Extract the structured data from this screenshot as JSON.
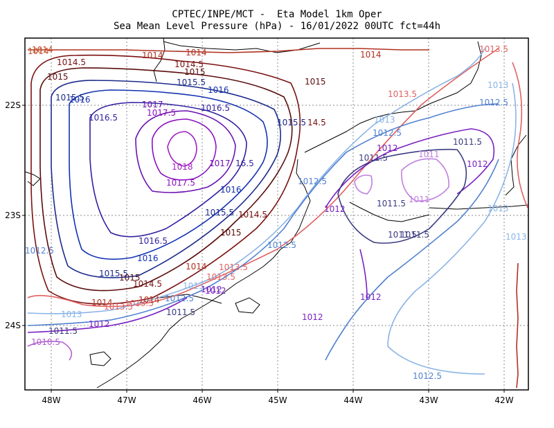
{
  "header": {
    "line1": "CPTEC/INPE/MCT -  Eta Model 1km Oper",
    "line2": "Sea Mean Level Pressure (hPa) - 16/01/2022 00UTC fct=44h"
  },
  "axes": {
    "x_ticks": [
      "48W",
      "47W",
      "46W",
      "45W",
      "44W",
      "43W",
      "42W"
    ],
    "y_ticks": [
      "22S",
      "23S",
      "24S"
    ]
  },
  "contour_labels": [
    {
      "text": "1014",
      "color": "#c0502a"
    },
    {
      "text": "1014",
      "color": "#b03020"
    },
    {
      "text": "1014.5",
      "color": "#7a1010"
    },
    {
      "text": "1014.5",
      "color": "#7a1010"
    },
    {
      "text": "1015",
      "color": "#5a0c0c"
    },
    {
      "text": "1015",
      "color": "#5a0c0c"
    },
    {
      "text": "1015",
      "color": "#5a0c0c"
    },
    {
      "text": "1015.5",
      "color": "#1a2a8a"
    },
    {
      "text": "1015.5",
      "color": "#1a2a8a"
    },
    {
      "text": "1016",
      "color": "#1030b0"
    },
    {
      "text": "1016",
      "color": "#1030b0"
    },
    {
      "text": "1016.5",
      "color": "#3020a0"
    },
    {
      "text": "1016.5",
      "color": "#3020a0"
    },
    {
      "text": "1017",
      "color": "#6a10b0"
    },
    {
      "text": "1017.5",
      "color": "#8a10c0"
    },
    {
      "text": "1018",
      "color": "#a020c0"
    },
    {
      "text": "1017.5",
      "color": "#8a10c0"
    },
    {
      "text": "1017",
      "color": "#6a10b0"
    },
    {
      "text": "16.5",
      "color": "#3020a0"
    },
    {
      "text": "1016",
      "color": "#1030b0"
    },
    {
      "text": "1015.5",
      "color": "#1a2a8a"
    },
    {
      "text": "1014.5",
      "color": "#7a1010"
    },
    {
      "text": "1015",
      "color": "#5a0c0c"
    },
    {
      "text": "1015.5",
      "color": "#1a2a8a"
    },
    {
      "text": "14.5",
      "color": "#7a1010"
    },
    {
      "text": "1016.5",
      "color": "#3020a0"
    },
    {
      "text": "1016",
      "color": "#1030b0"
    },
    {
      "text": "1015.5",
      "color": "#1a2a8a"
    },
    {
      "text": "1015",
      "color": "#5a0c0c"
    },
    {
      "text": "1014.5",
      "color": "#7a1010"
    },
    {
      "text": "1014",
      "color": "#b03020"
    },
    {
      "text": "1013.5",
      "color": "#e06060"
    },
    {
      "text": "1013",
      "color": "#8ab4e6"
    },
    {
      "text": "1012.5",
      "color": "#5080d0"
    },
    {
      "text": "1012",
      "color": "#7a20c0"
    },
    {
      "text": "1011.5",
      "color": "#3a3a80"
    },
    {
      "text": "1014",
      "color": "#b03020"
    },
    {
      "text": "1013.5",
      "color": "#e06060"
    },
    {
      "text": "1013",
      "color": "#8ab4e6"
    },
    {
      "text": "1012",
      "color": "#7a20c0"
    },
    {
      "text": "1011.5",
      "color": "#3a3a80"
    },
    {
      "text": "1010.5",
      "color": "#b060d0"
    },
    {
      "text": "1012.5",
      "color": "#5080d0"
    },
    {
      "text": "1014",
      "color": "#b03020"
    },
    {
      "text": "1013.5",
      "color": "#e06060"
    },
    {
      "text": "1013.5",
      "color": "#e06060"
    },
    {
      "text": "1013",
      "color": "#8ab4e6"
    },
    {
      "text": "1013",
      "color": "#8ab4e6"
    },
    {
      "text": "1012.5",
      "color": "#5080d0"
    },
    {
      "text": "1012.5",
      "color": "#5080d0"
    },
    {
      "text": "1012.5",
      "color": "#5080d0"
    },
    {
      "text": "1012",
      "color": "#7a20c0"
    },
    {
      "text": "1012",
      "color": "#7a20c0"
    },
    {
      "text": "1012",
      "color": "#7a20c0"
    },
    {
      "text": "1011.5",
      "color": "#3a3a80"
    },
    {
      "text": "1011.5",
      "color": "#3a3a80"
    },
    {
      "text": "1011.5",
      "color": "#3a3a80"
    },
    {
      "text": "1011",
      "color": "#c080e0"
    },
    {
      "text": "1011",
      "color": "#c080e0"
    },
    {
      "text": "1011.5",
      "color": "#3a3a80"
    },
    {
      "text": "1011.5",
      "color": "#3a3a80"
    },
    {
      "text": "1012",
      "color": "#7a20c0"
    },
    {
      "text": "1012",
      "color": "#7a20c0"
    },
    {
      "text": "1012",
      "color": "#7a20c0"
    },
    {
      "text": "1012.5",
      "color": "#5080d0"
    },
    {
      "text": "1012.5",
      "color": "#5080d0"
    },
    {
      "text": "1013",
      "color": "#8ab4e6"
    },
    {
      "text": "1013",
      "color": "#8ab4e6"
    },
    {
      "text": "1013.5",
      "color": "#e06060"
    },
    {
      "text": "1013.5",
      "color": "#e06060"
    },
    {
      "text": "1014",
      "color": "#b03020"
    },
    {
      "text": "1014",
      "color": "#b03020"
    },
    {
      "text": "1014",
      "color": "#c0502a"
    }
  ]
}
